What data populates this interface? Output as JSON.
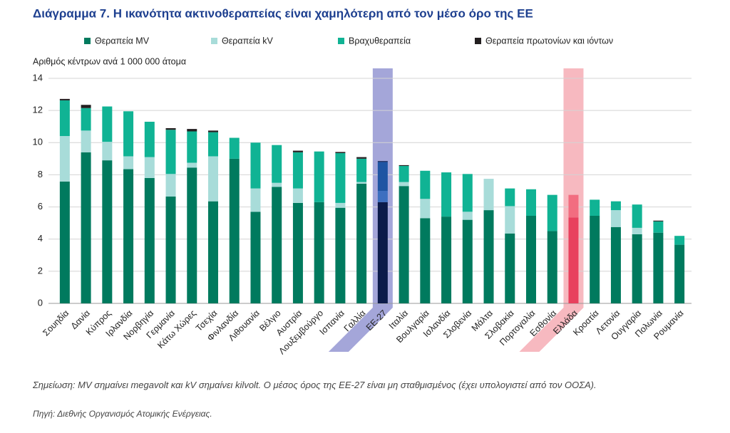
{
  "chart_data": {
    "type": "stacked_bar",
    "title": "Διάγραμμα 7. Η ικανότητα ακτινοθεραπείας είναι χαμηλότερη από τον μέσο όρο της ΕΕ",
    "y_axis_label": "Αριθμός κέντρων ανά 1 000 000 άτομα",
    "note": "Σημείωση: MV σημαίνει megavolt και kV σημαίνει kilvolt. Ο μέσος όρος της ΕΕ-27 είναι μη σταθμισμένος (έχει υπολογιστεί από τον ΟΟΣΑ).",
    "source": "Πηγή: Διεθνής Οργανισμός Ατομικής Ενέργειας.",
    "categories": [
      "Σουηδία",
      "Δανία",
      "Κύπρος",
      "Ιρλανδία",
      "Νορβηγία",
      "Γερμανία",
      "Κάτω Χώρες",
      "Τσεχία",
      "Φινλανδία",
      "Λιθουανία",
      "Βέλγιο",
      "Αυστρία",
      "Λουξεμβούργο",
      "Ισπανία",
      "Γαλλία",
      "ΕΕ-27",
      "Ιταλία",
      "Βουλγαρία",
      "Ισλανδία",
      "Σλοβενία",
      "Μάλτα",
      "Σλοβακία",
      "Πορτογαλία",
      "Εσθονία",
      "Ελλάδα",
      "Κροατία",
      "Λετονία",
      "Ουγγαρία",
      "Πολωνία",
      "Ρουμανία"
    ],
    "series": [
      {
        "name": "Θεραπεία MV",
        "color": "#007a5e",
        "values": [
          7.58,
          9.4,
          8.9,
          8.35,
          7.8,
          6.65,
          8.45,
          6.35,
          9.0,
          5.7,
          7.25,
          6.25,
          6.3,
          5.95,
          7.45,
          6.3,
          7.3,
          5.3,
          5.4,
          5.2,
          5.8,
          4.35,
          5.45,
          4.5,
          5.35,
          5.45,
          4.75,
          4.3,
          4.4,
          3.65
        ]
      },
      {
        "name": "Θεραπεία kV",
        "color": "#a8dcd9",
        "values": [
          2.83,
          1.35,
          1.15,
          0.8,
          1.3,
          1.4,
          0.3,
          2.8,
          0,
          1.45,
          0.25,
          0.9,
          0,
          0.3,
          0.1,
          0.7,
          0.25,
          1.2,
          0,
          0.5,
          1.95,
          1.7,
          0,
          0,
          0,
          0,
          1.05,
          0.4,
          0,
          0
        ]
      },
      {
        "name": "Βραχυθεραπεία",
        "color": "#10b394",
        "values": [
          2.22,
          1.4,
          2.2,
          2.8,
          2.2,
          2.75,
          1.95,
          1.5,
          1.3,
          2.85,
          2.35,
          2.25,
          3.15,
          3.1,
          1.45,
          1.8,
          1.0,
          1.75,
          2.75,
          2.35,
          0,
          1.1,
          1.65,
          2.25,
          1.4,
          1.0,
          0.55,
          1.45,
          0.7,
          0.55
        ]
      },
      {
        "name": "Θεραπεία πρωτονίων και ιόντων",
        "color": "#231f20",
        "values": [
          0.09,
          0.2,
          0,
          0,
          0,
          0.1,
          0.15,
          0.1,
          0,
          0,
          0,
          0.1,
          0,
          0.07,
          0.1,
          0.05,
          0.05,
          0,
          0,
          0,
          0,
          0,
          0,
          0,
          0,
          0,
          0,
          0,
          0.05,
          0
        ]
      }
    ],
    "highlights": [
      {
        "category": "ΕΕ-27",
        "band_color": "#a4a6d9",
        "colors": [
          "#0b1b4a",
          "#3d6fc0",
          "#1f55a3",
          "#0b1b4a"
        ]
      },
      {
        "category": "Ελλάδα",
        "band_color": "#f7b9c0",
        "colors": [
          "#e8415e",
          "#f58a99",
          "#f26d80",
          "#231f20"
        ]
      }
    ],
    "ylim": [
      0,
      14
    ],
    "yticks": [
      0,
      2,
      4,
      6,
      8,
      10,
      12,
      14
    ],
    "grid": true
  }
}
